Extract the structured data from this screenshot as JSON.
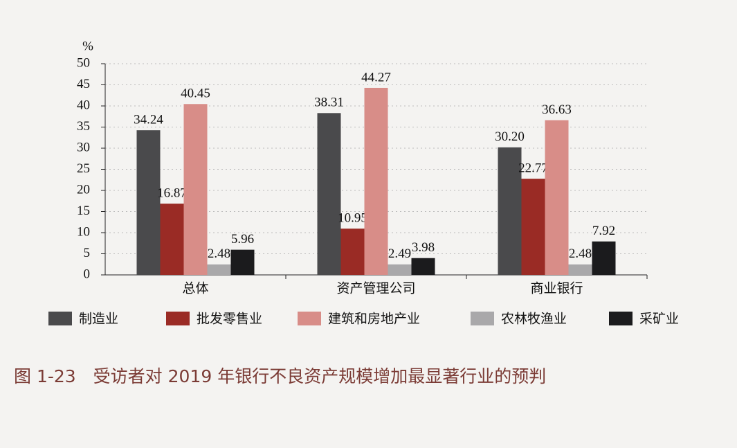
{
  "chart_data": {
    "type": "bar",
    "title": "图 1-23　受访者对 2019 年银行不良资产规模增加最显著行业的预判",
    "y_label": "%",
    "categories": [
      "总体",
      "资产管理公司",
      "商业银行"
    ],
    "series": [
      {
        "name": "制造业",
        "color": "#4a4a4c",
        "values": [
          34.24,
          38.31,
          30.2
        ],
        "value_labels": [
          "34.24",
          "38.31",
          "30.20"
        ]
      },
      {
        "name": "批发零售业",
        "color": "#9a2b25",
        "values": [
          16.87,
          10.95,
          22.77
        ]
      },
      {
        "name": "建筑和房地产业",
        "color": "#d88d88",
        "values": [
          40.45,
          44.27,
          36.63
        ]
      },
      {
        "name": "农林牧渔业",
        "color": "#a9a8aa",
        "values": [
          2.48,
          2.49,
          2.48
        ]
      },
      {
        "name": "采矿业",
        "color": "#1b1b1d",
        "values": [
          5.96,
          3.98,
          7.92
        ]
      }
    ],
    "ylim": [
      0,
      50
    ],
    "yticks": [
      0,
      5,
      10,
      15,
      20,
      25,
      30,
      35,
      40,
      45,
      50
    ],
    "grid": true
  }
}
